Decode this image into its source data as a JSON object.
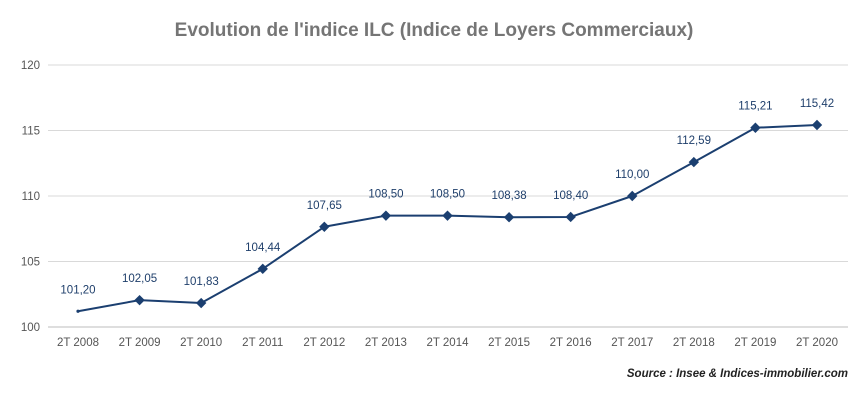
{
  "chart_data": {
    "type": "line",
    "title": "Evolution de l'indice ILC (Indice de Loyers Commerciaux)",
    "source": "Source : Insee & Indices-immobilier.com",
    "categories": [
      "2T 2008",
      "2T 2009",
      "2T 2010",
      "2T 2011",
      "2T 2012",
      "2T 2013",
      "2T 2014",
      "2T 2015",
      "2T 2016",
      "2T 2017",
      "2T 2018",
      "2T 2019",
      "2T 2020"
    ],
    "values": [
      101.2,
      102.05,
      101.83,
      104.44,
      107.65,
      108.5,
      108.5,
      108.38,
      108.4,
      110.0,
      112.59,
      115.21,
      115.42
    ],
    "value_labels": [
      "101,20",
      "102,05",
      "101,83",
      "104,44",
      "107,65",
      "108,50",
      "108,50",
      "108,38",
      "108,40",
      "110,00",
      "112,59",
      "115,21",
      "115,42"
    ],
    "ylim": [
      100,
      120
    ],
    "yticks": [
      "100",
      "105",
      "110",
      "115",
      "120"
    ],
    "xlabel": "",
    "ylabel": "",
    "grid": true,
    "colors": {
      "series": "#1b3f70",
      "label": "#1f3f6b",
      "grid": "#d9d9d9",
      "axis_text": "#555555"
    }
  }
}
